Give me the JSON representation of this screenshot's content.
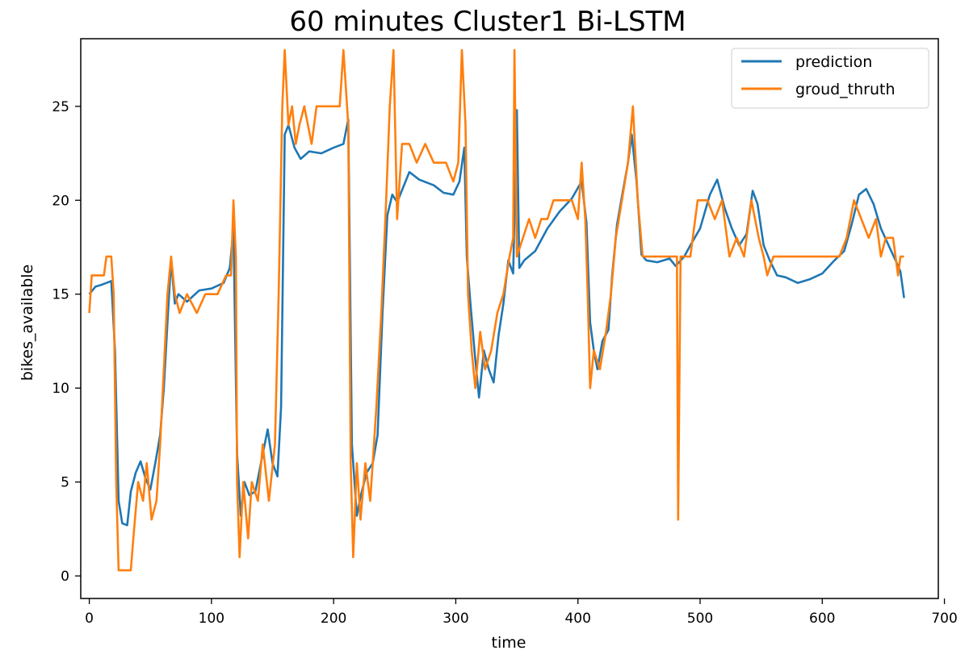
{
  "chart_data": {
    "type": "line",
    "title": "60 minutes  Cluster1 Bi-LSTM",
    "xlabel": "time",
    "ylabel": "bikes_available",
    "xlim": [
      -7,
      695
    ],
    "ylim": [
      -1.2,
      28.6
    ],
    "xticks": [
      0,
      100,
      200,
      300,
      400,
      500,
      600,
      700
    ],
    "yticks": [
      0,
      5,
      10,
      15,
      20,
      25
    ],
    "grid": false,
    "legend_position": "top-right",
    "series": [
      {
        "name": "prediction",
        "color": "#1f77b4",
        "points": [
          [
            0,
            15
          ],
          [
            5,
            15.4
          ],
          [
            10,
            15.5
          ],
          [
            18,
            15.7
          ],
          [
            21,
            12
          ],
          [
            24,
            4
          ],
          [
            27,
            2.8
          ],
          [
            31,
            2.7
          ],
          [
            34,
            4.5
          ],
          [
            38,
            5.5
          ],
          [
            42,
            6.1
          ],
          [
            46,
            5.2
          ],
          [
            50,
            4.6
          ],
          [
            54,
            6
          ],
          [
            58,
            7.5
          ],
          [
            61,
            10
          ],
          [
            64,
            13.5
          ],
          [
            67,
            16.8
          ],
          [
            70,
            14.5
          ],
          [
            73,
            15
          ],
          [
            80,
            14.6
          ],
          [
            90,
            15.2
          ],
          [
            100,
            15.3
          ],
          [
            110,
            15.6
          ],
          [
            115,
            16.4
          ],
          [
            118,
            18.5
          ],
          [
            121,
            6.5
          ],
          [
            124,
            3.2
          ],
          [
            127,
            5
          ],
          [
            131,
            4.3
          ],
          [
            136,
            4.5
          ],
          [
            142,
            6.5
          ],
          [
            146,
            7.8
          ],
          [
            150,
            6
          ],
          [
            154,
            5.3
          ],
          [
            157,
            9
          ],
          [
            160,
            23.5
          ],
          [
            163,
            24
          ],
          [
            168,
            22.8
          ],
          [
            173,
            22.2
          ],
          [
            180,
            22.6
          ],
          [
            190,
            22.5
          ],
          [
            200,
            22.8
          ],
          [
            208,
            23
          ],
          [
            212,
            24.3
          ],
          [
            215,
            7
          ],
          [
            219,
            3.2
          ],
          [
            222,
            4.2
          ],
          [
            227,
            5.5
          ],
          [
            232,
            6
          ],
          [
            236,
            7.5
          ],
          [
            240,
            14
          ],
          [
            244,
            19.2
          ],
          [
            248,
            20.3
          ],
          [
            252,
            19.9
          ],
          [
            257,
            20.7
          ],
          [
            262,
            21.5
          ],
          [
            270,
            21.1
          ],
          [
            282,
            20.8
          ],
          [
            290,
            20.4
          ],
          [
            298,
            20.3
          ],
          [
            303,
            21
          ],
          [
            307,
            22.8
          ],
          [
            309,
            17
          ],
          [
            312,
            14.5
          ],
          [
            316,
            11.5
          ],
          [
            319,
            9.5
          ],
          [
            323,
            12
          ],
          [
            327,
            11
          ],
          [
            331,
            10.3
          ],
          [
            335,
            12.8
          ],
          [
            339,
            14.5
          ],
          [
            343,
            16.8
          ],
          [
            347,
            16.1
          ],
          [
            350,
            24.8
          ],
          [
            352,
            16.4
          ],
          [
            356,
            16.8
          ],
          [
            365,
            17.3
          ],
          [
            375,
            18.5
          ],
          [
            385,
            19.4
          ],
          [
            395,
            20.1
          ],
          [
            403,
            21
          ],
          [
            407,
            18.8
          ],
          [
            410,
            13.5
          ],
          [
            413,
            12
          ],
          [
            416,
            11
          ],
          [
            420,
            12.5
          ],
          [
            425,
            13.1
          ],
          [
            428,
            16
          ],
          [
            432,
            18.7
          ],
          [
            436,
            20.2
          ],
          [
            441,
            22
          ],
          [
            444,
            23.5
          ],
          [
            448,
            21
          ],
          [
            452,
            17.1
          ],
          [
            456,
            16.8
          ],
          [
            465,
            16.7
          ],
          [
            475,
            16.9
          ],
          [
            480,
            16.5
          ],
          [
            487,
            17
          ],
          [
            492,
            17.6
          ],
          [
            500,
            18.5
          ],
          [
            508,
            20.3
          ],
          [
            514,
            21.1
          ],
          [
            520,
            19.6
          ],
          [
            526,
            18.5
          ],
          [
            532,
            17.6
          ],
          [
            538,
            18.2
          ],
          [
            543,
            20.5
          ],
          [
            547,
            19.8
          ],
          [
            552,
            17.6
          ],
          [
            557,
            16.8
          ],
          [
            563,
            16
          ],
          [
            570,
            15.9
          ],
          [
            580,
            15.6
          ],
          [
            590,
            15.8
          ],
          [
            600,
            16.1
          ],
          [
            610,
            16.8
          ],
          [
            618,
            17.3
          ],
          [
            624,
            18.7
          ],
          [
            630,
            20.3
          ],
          [
            636,
            20.6
          ],
          [
            642,
            19.8
          ],
          [
            648,
            18.5
          ],
          [
            655,
            17.5
          ],
          [
            660,
            16.8
          ],
          [
            664,
            16.2
          ],
          [
            667,
            14.8
          ]
        ]
      },
      {
        "name": "groud_thruth",
        "color": "#ff7f0e",
        "points": [
          [
            0,
            14
          ],
          [
            2,
            16
          ],
          [
            12,
            16
          ],
          [
            14,
            17
          ],
          [
            18,
            17
          ],
          [
            20,
            15
          ],
          [
            22,
            5
          ],
          [
            24,
            0.3
          ],
          [
            34,
            0.3
          ],
          [
            36,
            2
          ],
          [
            40,
            5
          ],
          [
            44,
            4
          ],
          [
            47,
            6
          ],
          [
            51,
            3
          ],
          [
            55,
            4
          ],
          [
            58,
            7
          ],
          [
            61,
            11
          ],
          [
            64,
            15
          ],
          [
            67,
            17
          ],
          [
            70,
            15
          ],
          [
            74,
            14
          ],
          [
            80,
            15
          ],
          [
            88,
            14
          ],
          [
            95,
            15
          ],
          [
            105,
            15
          ],
          [
            112,
            16
          ],
          [
            116,
            16
          ],
          [
            118,
            20
          ],
          [
            120,
            17
          ],
          [
            121,
            5
          ],
          [
            123,
            1
          ],
          [
            126,
            5
          ],
          [
            130,
            2
          ],
          [
            133,
            5
          ],
          [
            138,
            4
          ],
          [
            142,
            7
          ],
          [
            147,
            4
          ],
          [
            152,
            7
          ],
          [
            155,
            15
          ],
          [
            158,
            25
          ],
          [
            160,
            28
          ],
          [
            163,
            24
          ],
          [
            166,
            25
          ],
          [
            169,
            23
          ],
          [
            172,
            24
          ],
          [
            176,
            25
          ],
          [
            182,
            23
          ],
          [
            186,
            25
          ],
          [
            200,
            25
          ],
          [
            205,
            25
          ],
          [
            208,
            28
          ],
          [
            212,
            24
          ],
          [
            214,
            6
          ],
          [
            216,
            1
          ],
          [
            219,
            6
          ],
          [
            222,
            3
          ],
          [
            226,
            6
          ],
          [
            230,
            4
          ],
          [
            235,
            9
          ],
          [
            239,
            14
          ],
          [
            243,
            20
          ],
          [
            246,
            25
          ],
          [
            249,
            28
          ],
          [
            252,
            19
          ],
          [
            256,
            23
          ],
          [
            262,
            23
          ],
          [
            268,
            22
          ],
          [
            275,
            23
          ],
          [
            282,
            22
          ],
          [
            292,
            22
          ],
          [
            298,
            21
          ],
          [
            302,
            22
          ],
          [
            305,
            28
          ],
          [
            308,
            24
          ],
          [
            310,
            15
          ],
          [
            313,
            12
          ],
          [
            316,
            10
          ],
          [
            320,
            13
          ],
          [
            324,
            11
          ],
          [
            329,
            12
          ],
          [
            334,
            14
          ],
          [
            339,
            15
          ],
          [
            344,
            17
          ],
          [
            347,
            18
          ],
          [
            348,
            28
          ],
          [
            350,
            17
          ],
          [
            355,
            18
          ],
          [
            360,
            19
          ],
          [
            365,
            18
          ],
          [
            370,
            19
          ],
          [
            375,
            19
          ],
          [
            380,
            20
          ],
          [
            390,
            20
          ],
          [
            395,
            20
          ],
          [
            400,
            19
          ],
          [
            403,
            22
          ],
          [
            406,
            19
          ],
          [
            408,
            15
          ],
          [
            410,
            10
          ],
          [
            413,
            12
          ],
          [
            418,
            11
          ],
          [
            423,
            13
          ],
          [
            427,
            15
          ],
          [
            431,
            18
          ],
          [
            436,
            20
          ],
          [
            441,
            22
          ],
          [
            445,
            25
          ],
          [
            449,
            20
          ],
          [
            453,
            17
          ],
          [
            470,
            17
          ],
          [
            481,
            17
          ],
          [
            482,
            3
          ],
          [
            484,
            17
          ],
          [
            492,
            17
          ],
          [
            498,
            20
          ],
          [
            506,
            20
          ],
          [
            512,
            19
          ],
          [
            518,
            20
          ],
          [
            524,
            17
          ],
          [
            530,
            18
          ],
          [
            536,
            17
          ],
          [
            542,
            20
          ],
          [
            548,
            18
          ],
          [
            552,
            17
          ],
          [
            555,
            16
          ],
          [
            560,
            17
          ],
          [
            574,
            17
          ],
          [
            590,
            17
          ],
          [
            606,
            17
          ],
          [
            614,
            17
          ],
          [
            620,
            18
          ],
          [
            626,
            20
          ],
          [
            632,
            19
          ],
          [
            638,
            18
          ],
          [
            644,
            19
          ],
          [
            648,
            17
          ],
          [
            652,
            18
          ],
          [
            658,
            18
          ],
          [
            662,
            16
          ],
          [
            664,
            17
          ],
          [
            667,
            17
          ]
        ]
      }
    ]
  }
}
